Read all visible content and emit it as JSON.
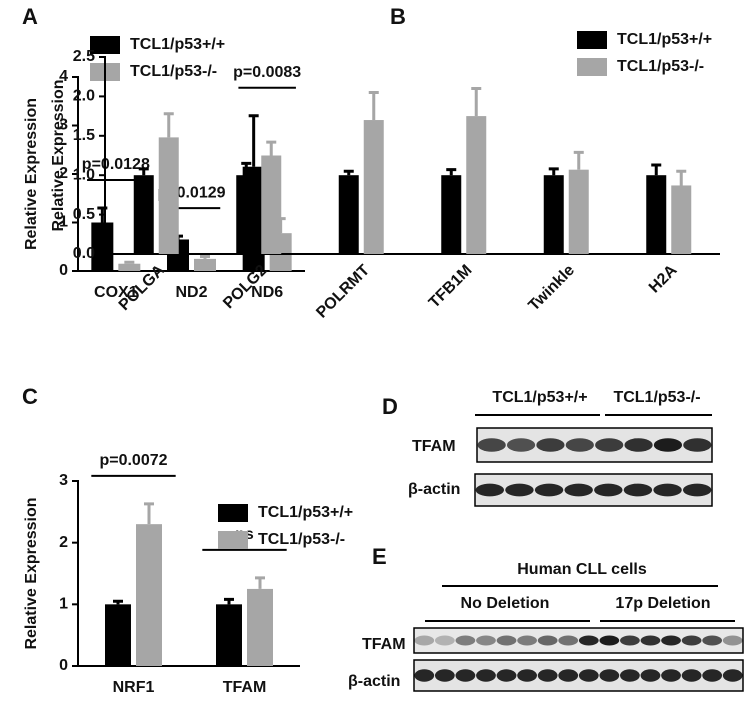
{
  "chart_data": [
    {
      "type": "bar",
      "panel_label": "A",
      "ylabel": "Relative Expression",
      "categories": [
        "COX1",
        "ND2",
        "ND6"
      ],
      "series": [
        {
          "name": "TCL1/p53+/+",
          "color": "#000000",
          "values": [
            1.0,
            0.65,
            2.15
          ],
          "errors": [
            0.3,
            0.07,
            1.05
          ]
        },
        {
          "name": "TCL1/p53-/-",
          "color": "#a6a6a6",
          "values": [
            0.15,
            0.25,
            0.78
          ],
          "errors": [
            0.03,
            0.05,
            0.3
          ]
        }
      ],
      "annotations": [
        "p=0.0128",
        "p=0.0129",
        "p=0.0083"
      ],
      "ylim": [
        0,
        4
      ],
      "yticks": [
        0,
        1,
        2,
        3,
        4
      ]
    },
    {
      "type": "bar",
      "panel_label": "B",
      "ylabel": "Relative Expression",
      "categories": [
        "POLGA",
        "POLG2",
        "POLRMT",
        "TFB1M",
        "Twinkle",
        "H2A"
      ],
      "series": [
        {
          "name": "TCL1/p53+/+",
          "color": "#000000",
          "values": [
            1.0,
            1.0,
            1.0,
            1.0,
            1.0,
            1.0
          ],
          "errors": [
            0.08,
            0.15,
            0.05,
            0.07,
            0.08,
            0.13
          ]
        },
        {
          "name": "TCL1/p53-/-",
          "color": "#a6a6a6",
          "values": [
            1.48,
            1.25,
            1.7,
            1.75,
            1.07,
            0.87
          ],
          "errors": [
            0.3,
            0.17,
            0.35,
            0.35,
            0.22,
            0.18
          ]
        }
      ],
      "ylim": [
        0,
        2.5
      ],
      "yticks": [
        {
          "value": 0,
          "label": "0.0"
        },
        0.5,
        {
          "value": 1,
          "label": "1.0"
        },
        1.5,
        {
          "value": 2,
          "label": "2.0"
        },
        2.5
      ]
    },
    {
      "type": "bar",
      "panel_label": "C",
      "ylabel": "Relative Expression",
      "categories": [
        "NRF1",
        "TFAM"
      ],
      "series": [
        {
          "name": "TCL1/p53+/+",
          "color": "#000000",
          "values": [
            1.0,
            1.0
          ],
          "errors": [
            0.05,
            0.08
          ]
        },
        {
          "name": "TCL1/p53-/-",
          "color": "#a6a6a6",
          "values": [
            2.3,
            1.25
          ],
          "errors": [
            0.33,
            0.18
          ]
        }
      ],
      "annotations": [
        "p=0.0072",
        "ns"
      ],
      "ylim": [
        0,
        3
      ],
      "yticks": [
        0,
        1,
        2,
        3
      ]
    }
  ],
  "blots": [
    {
      "panel_label": "D",
      "groups": [
        "TCL1/p53+/+",
        "TCL1/p53-/-"
      ],
      "rows": [
        "TFAM",
        "β-actin"
      ]
    },
    {
      "panel_label": "E",
      "title": "Human CLL cells",
      "groups": [
        "No Deletion",
        "17p Deletion"
      ],
      "rows": [
        "TFAM",
        "β-actin"
      ]
    }
  ]
}
